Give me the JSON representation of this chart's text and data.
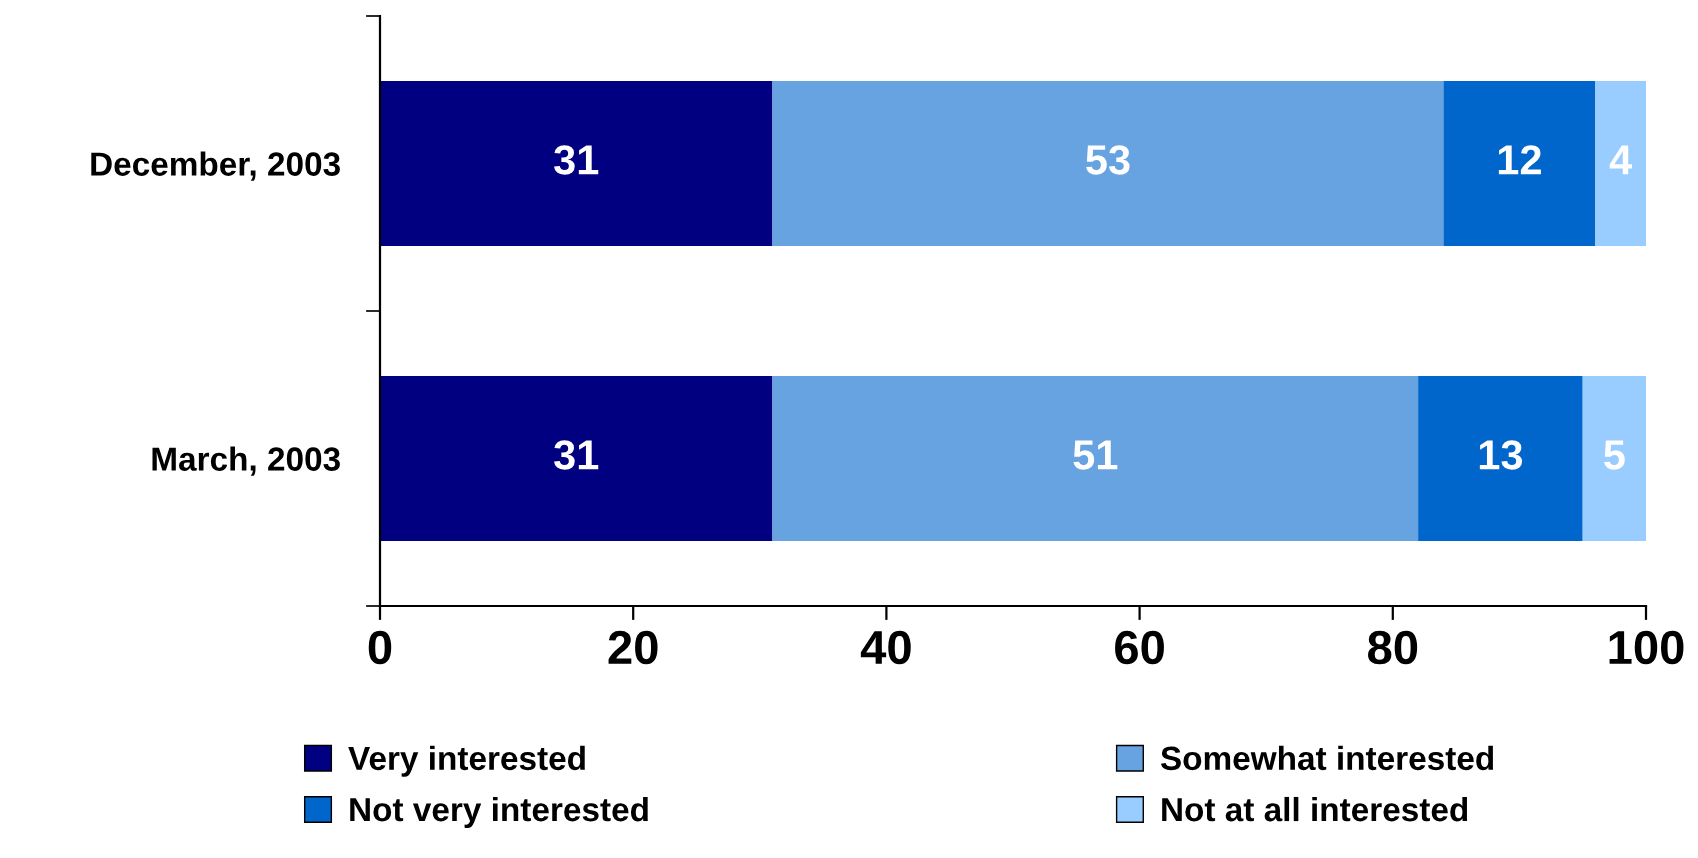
{
  "chart_data": {
    "type": "bar",
    "orientation": "horizontal",
    "stacked": true,
    "data_labels": true,
    "grid": false,
    "legend": "bottom",
    "categories": [
      "December, 2003",
      "March, 2003"
    ],
    "series": [
      {
        "name": "Very interested",
        "color": "#000080",
        "values": [
          31,
          31
        ]
      },
      {
        "name": "Somewhat interested",
        "color": "#66a3e0",
        "values": [
          53,
          51
        ]
      },
      {
        "name": "Not very interested",
        "color": "#0066cc",
        "values": [
          12,
          13
        ]
      },
      {
        "name": "Not at all interested",
        "color": "#99ccff",
        "values": [
          4,
          5
        ]
      }
    ],
    "xlim": [
      0,
      100
    ],
    "xticks": [
      0,
      20,
      40,
      60,
      80,
      100
    ]
  }
}
